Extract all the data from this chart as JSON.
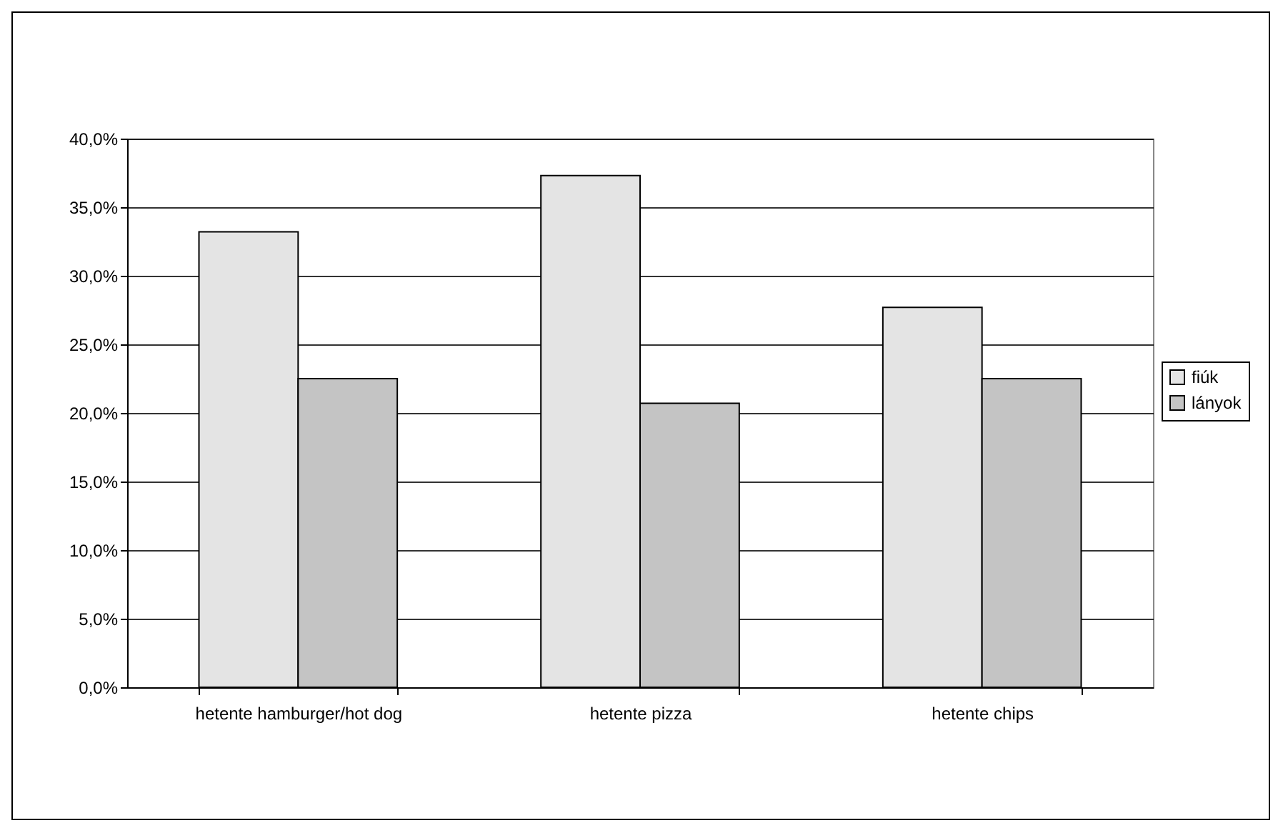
{
  "chart_data": {
    "type": "bar",
    "categories": [
      "hetente hamburger/hot dog",
      "hetente pizza",
      "hetente chips"
    ],
    "series": [
      {
        "name": "fiúk",
        "color": "#e4e4e4",
        "values": [
          33.2,
          37.3,
          27.7
        ]
      },
      {
        "name": "lányok",
        "color": "#c4c4c4",
        "values": [
          22.5,
          20.7,
          22.5
        ]
      }
    ],
    "ylim": [
      0,
      40
    ],
    "yticks": [
      {
        "value": 0,
        "label": "0,0%"
      },
      {
        "value": 5,
        "label": "5,0%"
      },
      {
        "value": 10,
        "label": "10,0%"
      },
      {
        "value": 15,
        "label": "15,0%"
      },
      {
        "value": 20,
        "label": "20,0%"
      },
      {
        "value": 25,
        "label": "25,0%"
      },
      {
        "value": 30,
        "label": "30,0%"
      },
      {
        "value": 35,
        "label": "35,0%"
      },
      {
        "value": 40,
        "label": "40,0%"
      }
    ],
    "grid": "y",
    "legend": "right"
  }
}
